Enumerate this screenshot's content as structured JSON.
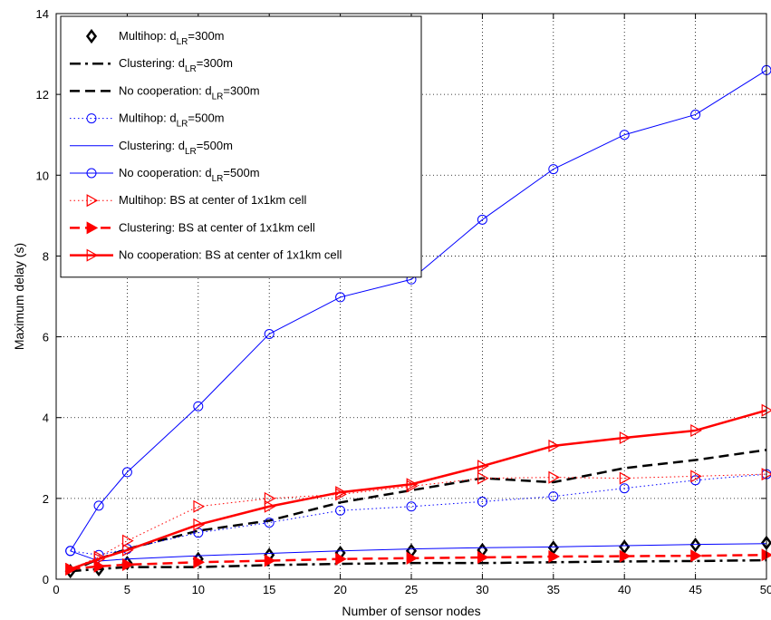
{
  "chart_data": {
    "type": "line",
    "title": "",
    "xlabel": "Number of sensor nodes",
    "ylabel": "Maximum delay (s)",
    "xlim": [
      0,
      50
    ],
    "ylim": [
      0,
      14
    ],
    "xticks": [
      0,
      5,
      10,
      15,
      20,
      25,
      30,
      35,
      40,
      45,
      50
    ],
    "yticks": [
      0,
      2,
      4,
      6,
      8,
      10,
      12,
      14
    ],
    "grid": true,
    "legend_position": "top-left",
    "series": [
      {
        "name": "Multihop: d_LR=300m",
        "legend_main": "Multihop: d",
        "legend_sub": "LR",
        "legend_tail": "=300m",
        "color": "#000000",
        "line": "none",
        "marker": "diamond",
        "width": 1,
        "x": [
          1,
          3,
          5,
          10,
          15,
          20,
          25,
          30,
          35,
          40,
          45,
          50
        ],
        "y": [
          0.2,
          0.25,
          0.4,
          0.5,
          0.6,
          0.65,
          0.7,
          0.72,
          0.78,
          0.8,
          0.85,
          0.9
        ]
      },
      {
        "name": "Clustering: d_LR=300m",
        "legend_main": "Clustering: d",
        "legend_sub": "LR",
        "legend_tail": "=300m",
        "color": "#000000",
        "line": "dashdot",
        "marker": "none",
        "width": 2.5,
        "x": [
          1,
          3,
          5,
          10,
          15,
          20,
          25,
          30,
          35,
          40,
          45,
          50
        ],
        "y": [
          0.2,
          0.25,
          0.3,
          0.3,
          0.35,
          0.38,
          0.4,
          0.4,
          0.42,
          0.44,
          0.45,
          0.47
        ]
      },
      {
        "name": "No cooperation: d_LR=300m",
        "legend_main": "No cooperation: d",
        "legend_sub": "LR",
        "legend_tail": "=300m",
        "color": "#000000",
        "line": "dashed",
        "marker": "none",
        "width": 2.5,
        "x": [
          1,
          3,
          5,
          10,
          15,
          20,
          25,
          30,
          35,
          40,
          45,
          50
        ],
        "y": [
          0.2,
          0.5,
          0.75,
          1.2,
          1.45,
          1.9,
          2.2,
          2.5,
          2.4,
          2.75,
          2.95,
          3.2
        ]
      },
      {
        "name": "Multihop: d_LR=500m",
        "legend_main": "Multihop: d",
        "legend_sub": "LR",
        "legend_tail": "=500m",
        "color": "#0000ff",
        "line": "dotted",
        "marker": "circle",
        "width": 1,
        "x": [
          1,
          3,
          5,
          10,
          15,
          20,
          25,
          30,
          35,
          40,
          45,
          50
        ],
        "y": [
          0.7,
          0.6,
          0.75,
          1.15,
          1.4,
          1.7,
          1.8,
          1.92,
          2.05,
          2.25,
          2.45,
          2.6
        ]
      },
      {
        "name": "Clustering: d_LR=500m",
        "legend_main": "Clustering: d",
        "legend_sub": "LR",
        "legend_tail": "=500m",
        "color": "#0000ff",
        "line": "solid",
        "marker": "none",
        "width": 1,
        "x": [
          1,
          3,
          5,
          10,
          15,
          20,
          25,
          30,
          35,
          40,
          45,
          50
        ],
        "y": [
          0.7,
          0.45,
          0.5,
          0.58,
          0.64,
          0.7,
          0.75,
          0.78,
          0.8,
          0.83,
          0.86,
          0.88
        ]
      },
      {
        "name": "No cooperation: d_LR=500m",
        "legend_main": "No cooperation: d",
        "legend_sub": "LR",
        "legend_tail": "=500m",
        "color": "#0000ff",
        "line": "solid",
        "marker": "circle",
        "width": 1,
        "x": [
          1,
          3,
          5,
          10,
          15,
          20,
          25,
          30,
          35,
          40,
          45,
          50
        ],
        "y": [
          0.7,
          1.82,
          2.65,
          4.28,
          6.07,
          6.98,
          7.42,
          8.9,
          10.15,
          11.0,
          11.5,
          12.6
        ]
      },
      {
        "name": "Multihop: BS at center of 1x1km cell",
        "legend_main": "Multihop: BS at center of 1x1km cell",
        "legend_sub": "",
        "legend_tail": "",
        "color": "#ff0000",
        "line": "dotted",
        "marker": "triangle-right",
        "width": 1,
        "x": [
          1,
          3,
          5,
          10,
          15,
          20,
          25,
          30,
          35,
          40,
          45,
          50
        ],
        "y": [
          0.25,
          0.55,
          0.95,
          1.8,
          2.0,
          2.1,
          2.3,
          2.5,
          2.52,
          2.5,
          2.55,
          2.6
        ]
      },
      {
        "name": "Clustering: BS at center of 1x1km cell",
        "legend_main": "Clustering: BS at center of 1x1km cell",
        "legend_sub": "",
        "legend_tail": "",
        "color": "#ff0000",
        "line": "dashed",
        "marker": "triangle-right-filled",
        "width": 2.5,
        "x": [
          1,
          3,
          5,
          10,
          15,
          20,
          25,
          30,
          35,
          40,
          45,
          50
        ],
        "y": [
          0.25,
          0.32,
          0.36,
          0.42,
          0.46,
          0.5,
          0.52,
          0.54,
          0.56,
          0.57,
          0.58,
          0.6
        ]
      },
      {
        "name": "No cooperation: BS at center of 1x1km cell",
        "legend_main": "No cooperation: BS at center of 1x1km cell",
        "legend_sub": "",
        "legend_tail": "",
        "color": "#ff0000",
        "line": "solid",
        "marker": "triangle-right",
        "width": 2.5,
        "x": [
          1,
          3,
          5,
          10,
          15,
          20,
          25,
          30,
          35,
          40,
          45,
          50
        ],
        "y": [
          0.25,
          0.5,
          0.72,
          1.35,
          1.8,
          2.15,
          2.35,
          2.8,
          3.3,
          3.5,
          3.68,
          4.18
        ]
      }
    ]
  }
}
